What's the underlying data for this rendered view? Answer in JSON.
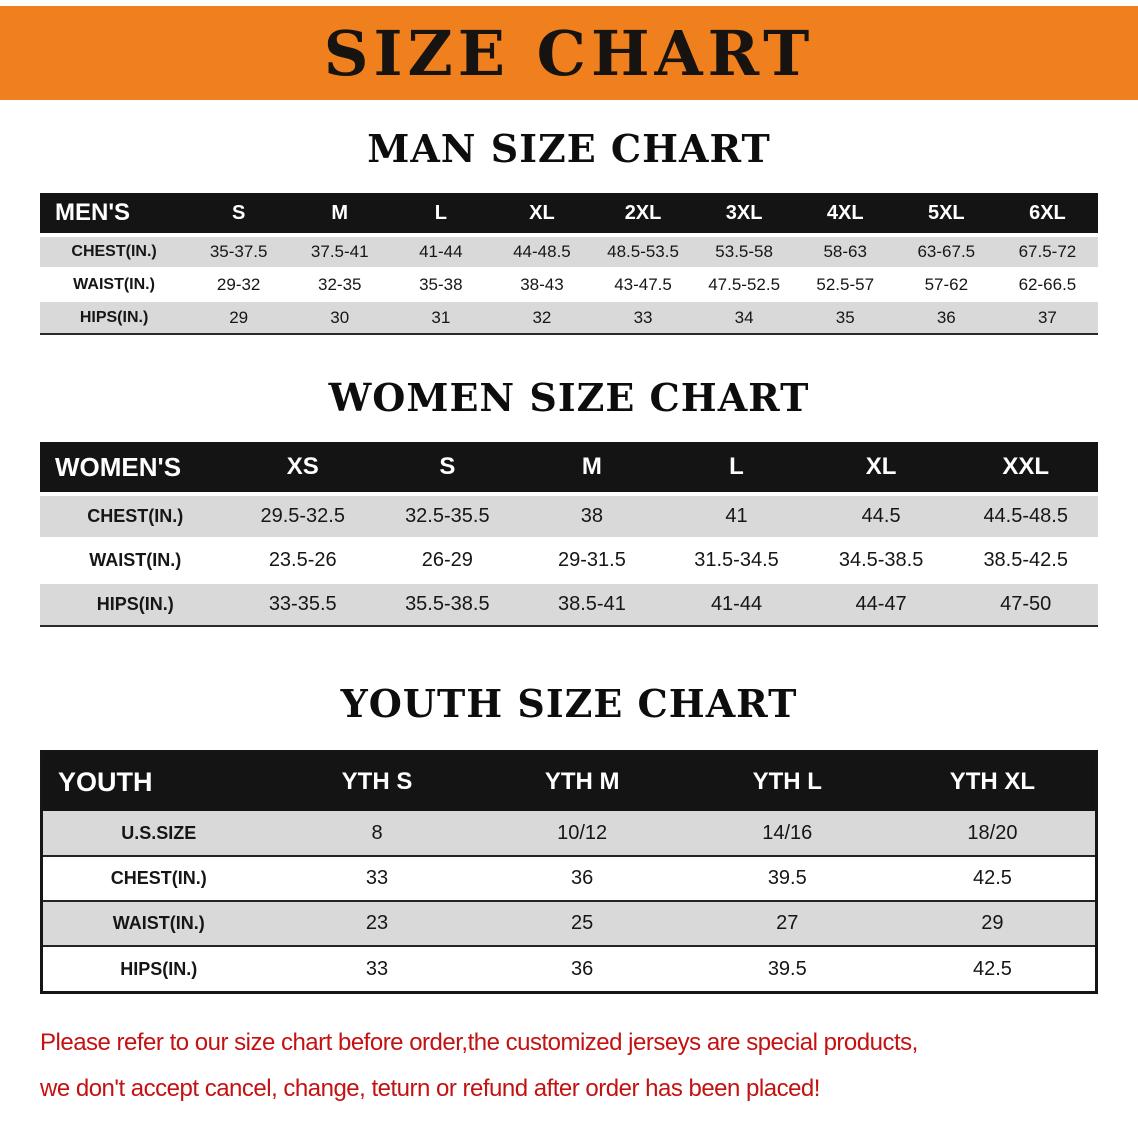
{
  "banner": {
    "title": "SIZE CHART"
  },
  "sections": [
    {
      "id": "men",
      "heading": "MAN SIZE CHART",
      "table": {
        "corner_label": "MEN'S",
        "columns": [
          "S",
          "M",
          "L",
          "XL",
          "2XL",
          "3XL",
          "4XL",
          "5XL",
          "6XL"
        ],
        "rows": [
          {
            "label": "CHEST(IN.)",
            "values": [
              "35-37.5",
              "37.5-41",
              "41-44",
              "44-48.5",
              "48.5-53.5",
              "53.5-58",
              "58-63",
              "63-67.5",
              "67.5-72"
            ]
          },
          {
            "label": "WAIST(IN.)",
            "values": [
              "29-32",
              "32-35",
              "35-38",
              "38-43",
              "43-47.5",
              "47.5-52.5",
              "52.5-57",
              "57-62",
              "62-66.5"
            ]
          },
          {
            "label": "HIPS(IN.)",
            "values": [
              "29",
              "30",
              "31",
              "32",
              "33",
              "34",
              "35",
              "36",
              "37"
            ]
          }
        ]
      }
    },
    {
      "id": "women",
      "heading": "WOMEN SIZE CHART",
      "table": {
        "corner_label": "WOMEN'S",
        "columns": [
          "XS",
          "S",
          "M",
          "L",
          "XL",
          "XXL"
        ],
        "rows": [
          {
            "label": "CHEST(IN.)",
            "values": [
              "29.5-32.5",
              "32.5-35.5",
              "38",
              "41",
              "44.5",
              "44.5-48.5"
            ]
          },
          {
            "label": "WAIST(IN.)",
            "values": [
              "23.5-26",
              "26-29",
              "29-31.5",
              "31.5-34.5",
              "34.5-38.5",
              "38.5-42.5"
            ]
          },
          {
            "label": "HIPS(IN.)",
            "values": [
              "33-35.5",
              "35.5-38.5",
              "38.5-41",
              "41-44",
              "44-47",
              "47-50"
            ]
          }
        ]
      }
    },
    {
      "id": "youth",
      "heading": "YOUTH SIZE CHART",
      "table": {
        "corner_label": "YOUTH",
        "columns": [
          "YTH S",
          "YTH M",
          "YTH L",
          "YTH XL"
        ],
        "rows": [
          {
            "label": "U.S.SIZE",
            "values": [
              "8",
              "10/12",
              "14/16",
              "18/20"
            ]
          },
          {
            "label": "CHEST(IN.)",
            "values": [
              "33",
              "36",
              "39.5",
              "42.5"
            ]
          },
          {
            "label": "WAIST(IN.)",
            "values": [
              "23",
              "25",
              "27",
              "29"
            ]
          },
          {
            "label": "HIPS(IN.)",
            "values": [
              "33",
              "36",
              "39.5",
              "42.5"
            ]
          }
        ]
      }
    }
  ],
  "disclaimer": {
    "line1": "Please refer to our size chart before order,the customized jerseys are special products,",
    "line2": "we don't accept cancel, change, teturn or refund after order has been placed!"
  },
  "colors": {
    "banner_orange": "#F0801E",
    "header_black": "#141414",
    "row_gray": "#d9d9d9",
    "disclaimer_red": "#c41111"
  }
}
